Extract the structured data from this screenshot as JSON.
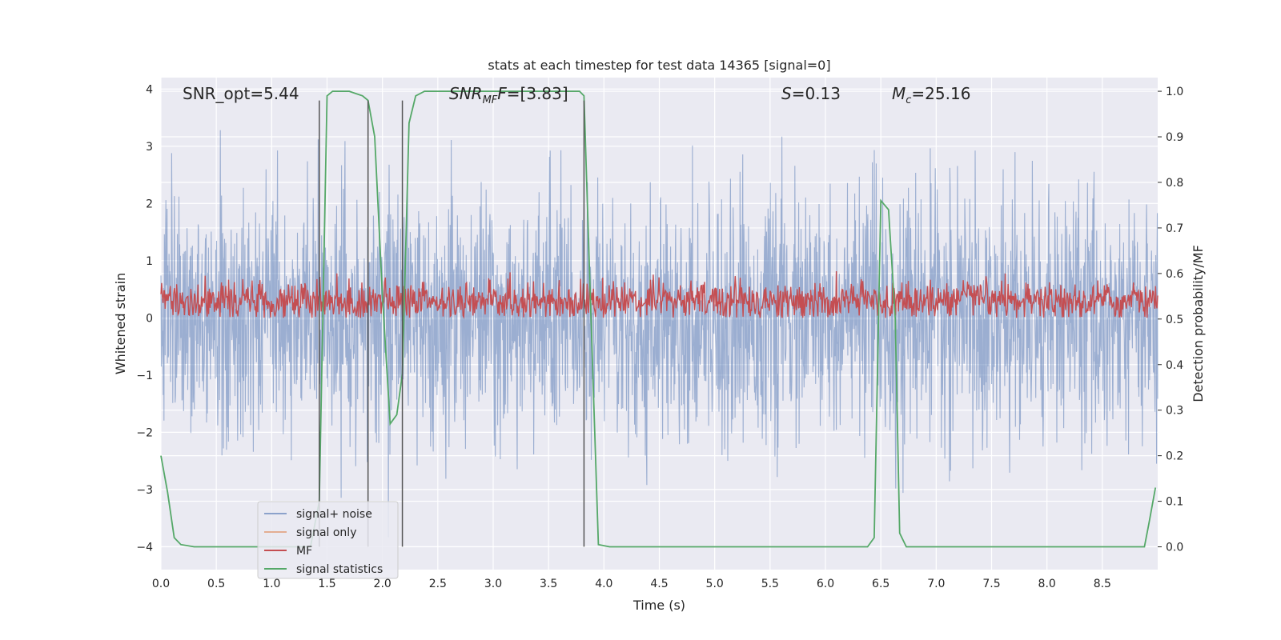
{
  "chart_data": {
    "type": "line",
    "title": "stats at each timestep for test data 14365 [signal=0]",
    "xlabel": "Time (s)",
    "ylabel": "Whitened strain",
    "y2label": "Detection probability/MF",
    "xlim": [
      0.0,
      9.0
    ],
    "ylim": [
      -4.4,
      4.2
    ],
    "y2lim": [
      -0.05,
      1.03
    ],
    "xticks": [
      0.0,
      0.5,
      1.0,
      1.5,
      2.0,
      2.5,
      3.0,
      3.5,
      4.0,
      4.5,
      5.0,
      5.5,
      6.0,
      6.5,
      7.0,
      7.5,
      8.0,
      8.5
    ],
    "xtick_labels": [
      "0.0",
      "0.5",
      "1.0",
      "1.5",
      "2.0",
      "2.5",
      "3.0",
      "3.5",
      "4.0",
      "4.5",
      "5.0",
      "5.5",
      "6.0",
      "6.5",
      "7.0",
      "7.5",
      "8.0",
      "8.5"
    ],
    "yticks": [
      -4,
      -3,
      -2,
      -1,
      0,
      1,
      2,
      3,
      4
    ],
    "ytick_labels": [
      "−4",
      "−3",
      "−2",
      "−1",
      "0",
      "1",
      "2",
      "3",
      "4"
    ],
    "y2ticks": [
      0.0,
      0.1,
      0.2,
      0.3,
      0.4,
      0.5,
      0.6,
      0.7,
      0.8,
      0.9,
      1.0
    ],
    "y2tick_labels": [
      "0.0",
      "0.1",
      "0.2",
      "0.3",
      "0.4",
      "0.5",
      "0.6",
      "0.7",
      "0.8",
      "0.9",
      "1.0"
    ],
    "grid": true,
    "annotations": {
      "snr_opt": "SNR_opt=5.44",
      "snr_mf_main": "SNR",
      "snr_mf_sub": "MF",
      "snr_mf_value": "=[3.83]",
      "s_symbol": "S",
      "s_value": "=0.13",
      "mc_symbol": "M",
      "mc_sub": "c",
      "mc_value": "=25.16"
    },
    "vertical_lines_x": [
      1.43,
      1.87,
      2.18,
      3.82
    ],
    "vertical_lines_yrange": [
      -4.0,
      3.8
    ],
    "noise_band": {
      "name": "signal+ noise",
      "color": "#4c72b0",
      "core_range": [
        -1.3,
        1.3
      ],
      "peak_range": [
        -3.9,
        3.6
      ]
    },
    "signal_only": {
      "name": "signal only",
      "color": "#dd8452"
    },
    "mf": {
      "name": "MF",
      "color": "#c44e52",
      "baseline": 0.0,
      "typical_range": [
        0.0,
        0.7
      ],
      "max": 1.05
    },
    "signal_statistics": {
      "name": "signal statistics",
      "color": "#55a868",
      "x": [
        0.0,
        0.06,
        0.12,
        0.18,
        0.3,
        0.6,
        1.0,
        1.35,
        1.43,
        1.5,
        1.55,
        1.7,
        1.82,
        1.87,
        1.93,
        2.0,
        2.07,
        2.13,
        2.18,
        2.24,
        2.3,
        2.38,
        2.5,
        3.0,
        3.5,
        3.78,
        3.82,
        3.87,
        3.95,
        4.05,
        4.5,
        5.0,
        5.5,
        6.0,
        6.38,
        6.44,
        6.5,
        6.57,
        6.63,
        6.67,
        6.73,
        7.0,
        8.0,
        8.88,
        8.92,
        8.98
      ],
      "y": [
        0.2,
        0.12,
        0.02,
        0.005,
        0.0,
        0.0,
        0.0,
        0.0,
        0.1,
        0.99,
        1.0,
        1.0,
        0.99,
        0.98,
        0.9,
        0.55,
        0.27,
        0.29,
        0.38,
        0.93,
        0.99,
        1.0,
        1.0,
        1.0,
        1.0,
        1.0,
        0.99,
        0.6,
        0.005,
        0.0,
        0.0,
        0.0,
        0.0,
        0.0,
        0.0,
        0.02,
        0.76,
        0.74,
        0.5,
        0.03,
        0.0,
        0.0,
        0.0,
        0.0,
        0.05,
        0.13
      ]
    },
    "legend": {
      "placement": "lower-left",
      "entries": [
        "signal+ noise",
        "signal only",
        "MF",
        "signal statistics"
      ]
    }
  }
}
